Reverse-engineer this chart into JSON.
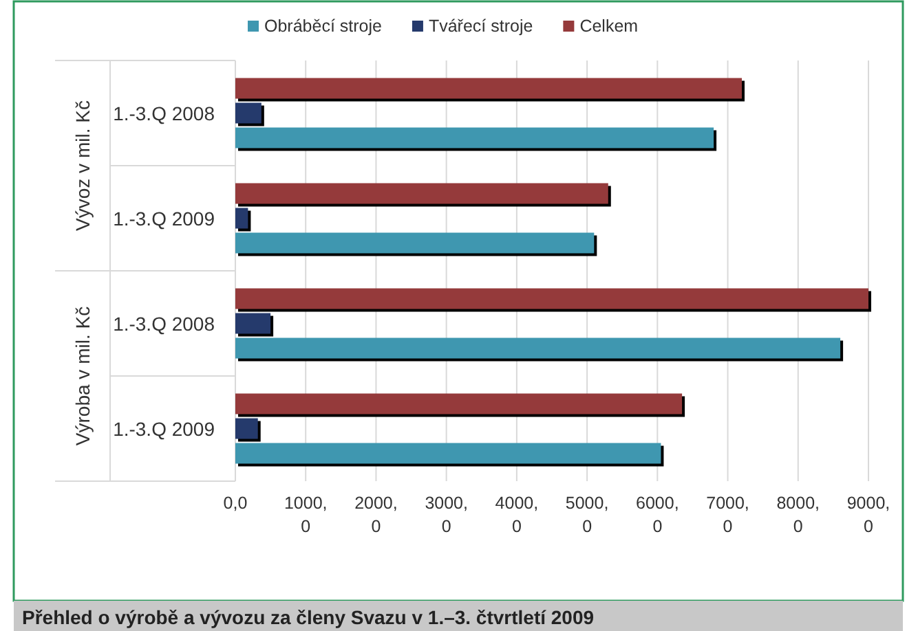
{
  "chart_data": {
    "type": "bar",
    "orientation": "horizontal",
    "title": "Přehled o výrobě a vývozu za členy Svazu v 1.–3. čtvrtletí 2009",
    "categories": [
      "1.-3.Q 2008",
      "1.-3.Q 2009",
      "1.-3.Q 2008",
      "1.-3.Q 2009"
    ],
    "series": [
      {
        "name": "Obráběcí stroje",
        "color": "#3f97b0",
        "values": [
          6800,
          5100,
          8600,
          6050
        ]
      },
      {
        "name": "Tvářecí stroje",
        "color": "#253a6c",
        "values": [
          370,
          180,
          500,
          320
        ]
      },
      {
        "name": "Celkem",
        "color": "#953a3b",
        "values": [
          7200,
          5300,
          9000,
          6350
        ]
      }
    ],
    "xlim": [
      0,
      9000
    ],
    "xticks": [
      {
        "value": 0,
        "label": "0,0"
      },
      {
        "value": 1000,
        "label": "1000,0"
      },
      {
        "value": 2000,
        "label": "2000,0"
      },
      {
        "value": 3000,
        "label": "3000,0"
      },
      {
        "value": 4000,
        "label": "4000,0"
      },
      {
        "value": 5000,
        "label": "5000,0"
      },
      {
        "value": 6000,
        "label": "6000,0"
      },
      {
        "value": 7000,
        "label": "7000,0"
      },
      {
        "value": 8000,
        "label": "8000,0"
      },
      {
        "value": 9000,
        "label": "9000,0"
      }
    ],
    "annotations": [
      "Vývoz v mil. Kč",
      "Výroba v mil. Kč"
    ],
    "grid": "x",
    "legend": "top"
  }
}
